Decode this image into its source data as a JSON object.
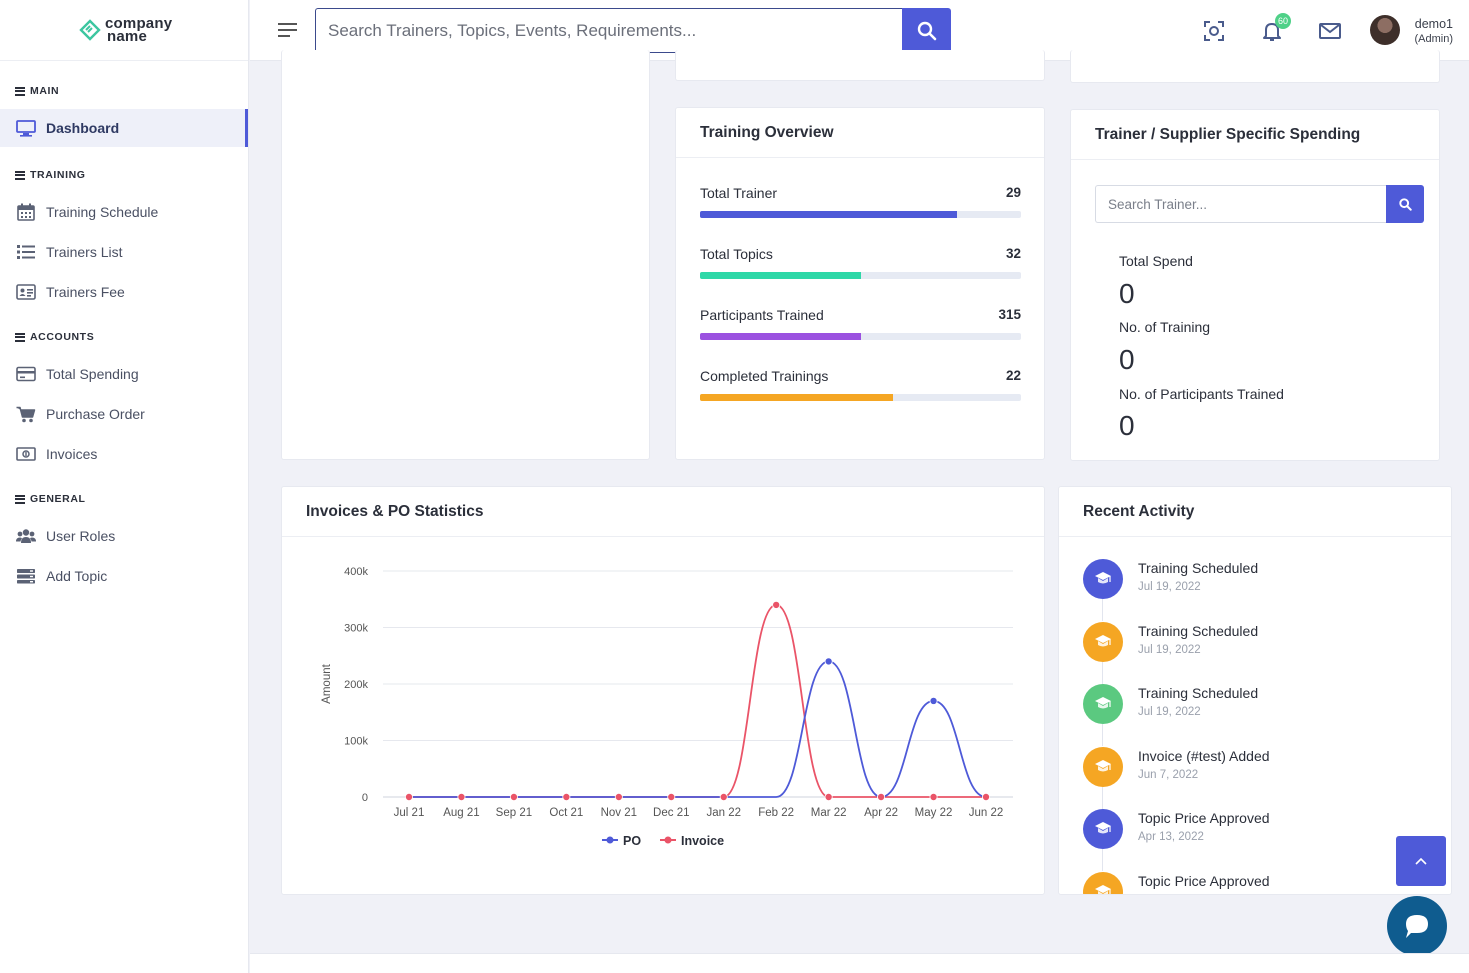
{
  "brand": {
    "line1": "company",
    "line2": "name"
  },
  "sidebar": {
    "sections": [
      {
        "title": "MAIN",
        "items": [
          {
            "label": "Dashboard",
            "icon": "monitor-icon",
            "active": true
          }
        ]
      },
      {
        "title": "TRAINING",
        "items": [
          {
            "label": "Training Schedule",
            "icon": "calendar-icon"
          },
          {
            "label": "Trainers List",
            "icon": "list-icon"
          },
          {
            "label": "Trainers Fee",
            "icon": "id-card-icon"
          }
        ]
      },
      {
        "title": "ACCOUNTS",
        "items": [
          {
            "label": "Total Spending",
            "icon": "credit-card-icon"
          },
          {
            "label": "Purchase Order",
            "icon": "cart-icon"
          },
          {
            "label": "Invoices",
            "icon": "money-bill-icon"
          }
        ]
      },
      {
        "title": "GENERAL",
        "items": [
          {
            "label": "User Roles",
            "icon": "users-icon"
          },
          {
            "label": "Add Topic",
            "icon": "stack-icon"
          }
        ]
      }
    ]
  },
  "topbar": {
    "search_placeholder": "Search Trainers, Topics, Events, Requirements...",
    "notification_count": "60",
    "user_name": "demo1",
    "user_role": "(Admin)"
  },
  "training_overview": {
    "title": "Training Overview",
    "rows": [
      {
        "label": "Total Trainer",
        "value": "29",
        "percent": 80,
        "color": "#4e5ad8"
      },
      {
        "label": "Total Topics",
        "value": "32",
        "percent": 50,
        "color": "#2ed8a7"
      },
      {
        "label": "Participants Trained",
        "value": "315",
        "percent": 50,
        "color": "#9b51e0"
      },
      {
        "label": "Completed Trainings",
        "value": "22",
        "percent": 60,
        "color": "#f5a623"
      }
    ]
  },
  "spending": {
    "title": "Trainer / Supplier Specific Spending",
    "search_placeholder": "Search Trainer...",
    "stats": [
      {
        "label": "Total Spend",
        "value": "0"
      },
      {
        "label": "No. of Training",
        "value": "0"
      },
      {
        "label": "No. of Participants Trained",
        "value": "0"
      }
    ]
  },
  "invoices_chart": {
    "title": "Invoices & PO Statistics"
  },
  "chart_data": {
    "type": "line",
    "title": "Invoices & PO Statistics",
    "ylabel": "Amount",
    "xlabel": "",
    "categories": [
      "Jul 21",
      "Aug 21",
      "Sep 21",
      "Oct 21",
      "Nov 21",
      "Dec 21",
      "Jan 22",
      "Feb 22",
      "Mar 22",
      "Apr 22",
      "May 22",
      "Jun 22"
    ],
    "ylim": [
      0,
      400000
    ],
    "yticks": [
      0,
      100000,
      200000,
      300000,
      400000
    ],
    "ytick_labels": [
      "0",
      "100k",
      "200k",
      "300k",
      "400k"
    ],
    "series": [
      {
        "name": "PO",
        "color": "#4e5ad8",
        "values": [
          0,
          0,
          0,
          0,
          0,
          0,
          0,
          0,
          240000,
          0,
          170000,
          0
        ]
      },
      {
        "name": "Invoice",
        "color": "#ea5468",
        "values": [
          0,
          0,
          0,
          0,
          0,
          0,
          0,
          340000,
          0,
          0,
          0,
          0
        ]
      }
    ],
    "grid": true,
    "legend": "bottom-center"
  },
  "recent_activity": {
    "title": "Recent Activity",
    "items": [
      {
        "title": "Training Scheduled",
        "date": "Jul 19, 2022",
        "color": "#4e5ad8"
      },
      {
        "title": "Training Scheduled",
        "date": "Jul 19, 2022",
        "color": "#f5a623"
      },
      {
        "title": "Training Scheduled",
        "date": "Jul 19, 2022",
        "color": "#5bc980"
      },
      {
        "title": "Invoice (#test) Added",
        "date": "Jun 7, 2022",
        "color": "#f5a623"
      },
      {
        "title": "Topic Price Approved",
        "date": "Apr 13, 2022",
        "color": "#4e5ad8"
      },
      {
        "title": "Topic Price Approved",
        "date": "",
        "color": "#f5a623"
      }
    ]
  }
}
